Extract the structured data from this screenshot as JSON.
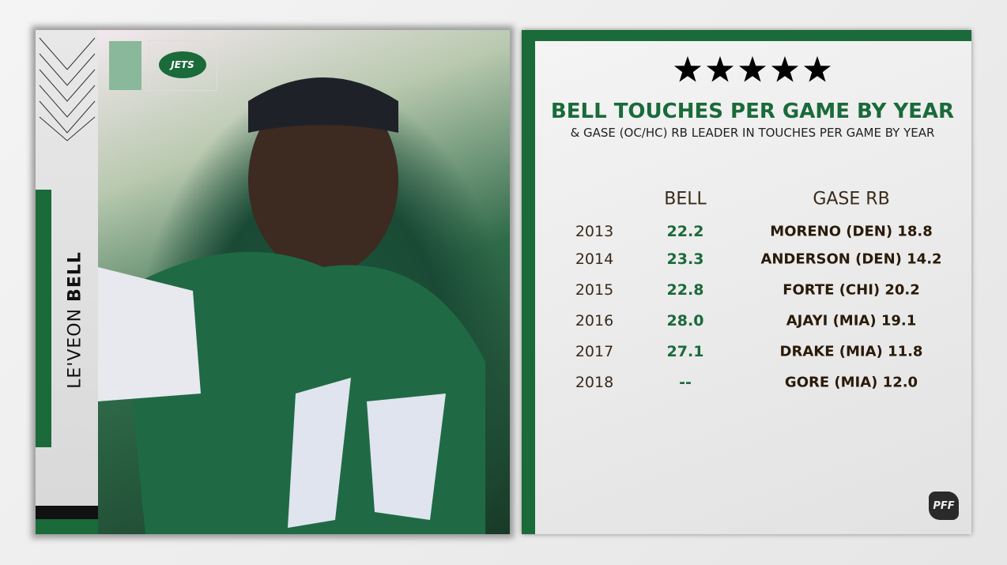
{
  "logo": {
    "text": "JETS"
  },
  "player": {
    "first": "LE'VEON",
    "last": "BELL"
  },
  "header": {
    "title": "BELL TOUCHES PER GAME BY YEAR",
    "subtitle": "& GASE (OC/HC) RB LEADER IN TOUCHES PER GAME BY YEAR"
  },
  "table": {
    "columns": [
      "BELL",
      "GASE RB"
    ],
    "rows": [
      [
        "2013",
        "22.2",
        "MORENO (DEN) 18.8"
      ],
      [
        "2014",
        "23.3",
        "ANDERSON (DEN) 14.2"
      ],
      [
        "2015",
        "22.8",
        "FORTE (CHI) 20.2"
      ],
      [
        "2016",
        "28.0",
        "AJAYI (MIA) 19.1"
      ],
      [
        "2017",
        "27.1",
        "DRAKE (MIA) 11.8"
      ],
      [
        "2018",
        "--",
        "GORE (MIA) 12.0"
      ]
    ]
  },
  "brand": "PFF"
}
